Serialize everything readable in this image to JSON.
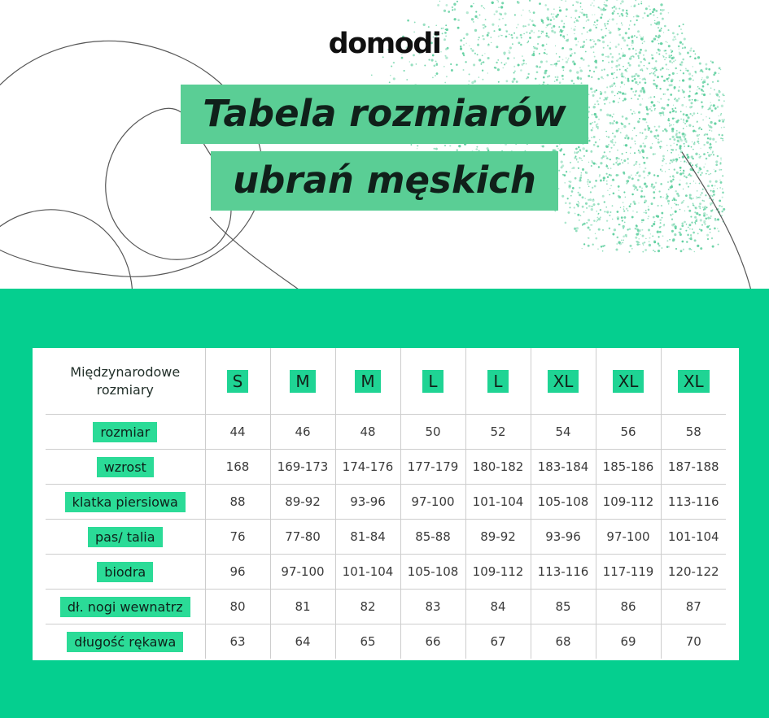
{
  "logo": "domodi",
  "title": {
    "line1": "Tabela rozmiarów",
    "line2": "ubrań męskich"
  },
  "table": {
    "header_label": "Międzynarodowe rozmiary",
    "size_headers": [
      "S",
      "M",
      "M",
      "L",
      "L",
      "XL",
      "XL",
      "XL"
    ],
    "rows": [
      {
        "label": "rozmiar",
        "values": [
          "44",
          "46",
          "48",
          "50",
          "52",
          "54",
          "56",
          "58"
        ]
      },
      {
        "label": "wzrost",
        "values": [
          "168",
          "169-173",
          "174-176",
          "177-179",
          "180-182",
          "183-184",
          "185-186",
          "187-188"
        ]
      },
      {
        "label": "klatka piersiowa",
        "values": [
          "88",
          "89-92",
          "93-96",
          "97-100",
          "101-104",
          "105-108",
          "109-112",
          "113-116"
        ]
      },
      {
        "label": "pas/ talia",
        "values": [
          "76",
          "77-80",
          "81-84",
          "85-88",
          "89-92",
          "93-96",
          "97-100",
          "101-104"
        ]
      },
      {
        "label": "biodra",
        "values": [
          "96",
          "97-100",
          "101-104",
          "105-108",
          "109-112",
          "113-116",
          "117-119",
          "120-122"
        ]
      },
      {
        "label": "dł. nogi wewnatrz",
        "values": [
          "80",
          "81",
          "82",
          "83",
          "84",
          "85",
          "86",
          "87"
        ]
      },
      {
        "label": "długość rękawa",
        "values": [
          "63",
          "64",
          "65",
          "66",
          "67",
          "68",
          "69",
          "70"
        ]
      }
    ]
  },
  "colors": {
    "section_bg": "#05cf8f",
    "title_highlight": "#5ace95",
    "badge": "#1fd494",
    "label_highlight": "#2bdb97",
    "dots": "#5fcf9f",
    "outline": "#3a3a3a"
  }
}
